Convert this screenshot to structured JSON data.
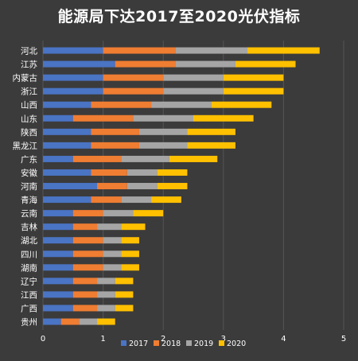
{
  "chart_data": {
    "type": "bar",
    "orientation": "horizontal",
    "stacked": true,
    "title": "能源局下达2017至2020光伏指标",
    "categories": [
      "河北",
      "江苏",
      "内蒙古",
      "浙江",
      "山西",
      "山东",
      "陕西",
      "黑龙江",
      "广东",
      "安徽",
      "河南",
      "青海",
      "云南",
      "吉林",
      "湖北",
      "四川",
      "湖南",
      "辽宁",
      "江西",
      "广西",
      "贵州"
    ],
    "series": [
      {
        "name": "2017",
        "color": "#4a74c4",
        "values": [
          1.0,
          1.2,
          1.0,
          1.0,
          0.8,
          0.5,
          0.8,
          0.8,
          0.5,
          0.8,
          0.9,
          0.8,
          0.5,
          0.5,
          0.5,
          0.5,
          0.5,
          0.5,
          0.5,
          0.5,
          0.3
        ]
      },
      {
        "name": "2018",
        "color": "#ef7d32",
        "values": [
          1.2,
          1.0,
          1.0,
          1.0,
          1.0,
          1.0,
          0.8,
          0.8,
          0.8,
          0.6,
          0.5,
          0.5,
          0.5,
          0.4,
          0.5,
          0.5,
          0.5,
          0.4,
          0.4,
          0.4,
          0.3
        ]
      },
      {
        "name": "2019",
        "color": "#a5a5a5",
        "values": [
          1.2,
          1.0,
          1.0,
          1.0,
          1.0,
          1.0,
          0.8,
          0.8,
          0.8,
          0.5,
          0.5,
          0.5,
          0.5,
          0.4,
          0.3,
          0.3,
          0.3,
          0.3,
          0.3,
          0.3,
          0.3
        ]
      },
      {
        "name": "2020",
        "color": "#ffc000",
        "values": [
          1.2,
          1.0,
          1.0,
          1.0,
          1.0,
          1.0,
          0.8,
          0.8,
          0.8,
          0.5,
          0.5,
          0.5,
          0.5,
          0.4,
          0.3,
          0.3,
          0.3,
          0.3,
          0.3,
          0.3,
          0.3
        ]
      }
    ],
    "xlim": [
      0,
      5
    ],
    "xticks": [
      "0",
      "1",
      "2",
      "3",
      "4",
      "5"
    ],
    "grid": true,
    "legend_position": "bottom"
  }
}
